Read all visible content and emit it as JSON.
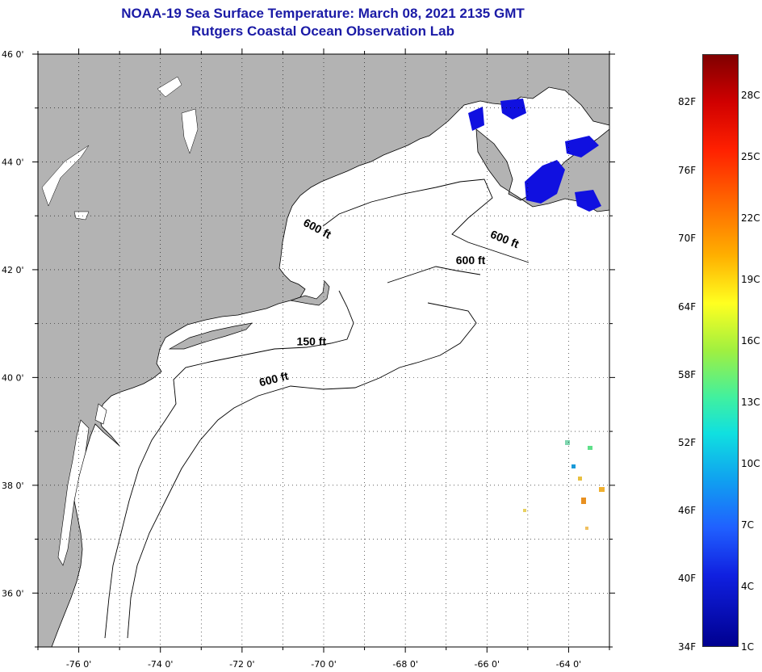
{
  "title": {
    "line1": "NOAA-19 Sea Surface Temperature:  March 08, 2021 2135 GMT",
    "line2": "Rutgers Coastal Ocean Observation Lab"
  },
  "map": {
    "lon_range": [
      -77,
      -63
    ],
    "lat_range": [
      35,
      46
    ],
    "lon_ticks": [
      {
        "value": -76,
        "label": "-76 0'"
      },
      {
        "value": -74,
        "label": "-74 0'"
      },
      {
        "value": -72,
        "label": "-72 0'"
      },
      {
        "value": -70,
        "label": "-70 0'"
      },
      {
        "value": -68,
        "label": "-68 0'"
      },
      {
        "value": -66,
        "label": "-66 0'"
      },
      {
        "value": -64,
        "label": "-64 0'"
      }
    ],
    "lat_ticks": [
      {
        "value": 46,
        "label": "46 0'"
      },
      {
        "value": 44,
        "label": "44 0'"
      },
      {
        "value": 42,
        "label": "42 0'"
      },
      {
        "value": 40,
        "label": "40 0'"
      },
      {
        "value": 38,
        "label": "38 0'"
      },
      {
        "value": 36,
        "label": "36 0'"
      }
    ],
    "contour_labels": [
      {
        "text": "600 ft",
        "lon": -70.2,
        "lat": 42.7,
        "rotate": 28
      },
      {
        "text": "600 ft",
        "lon": -65.6,
        "lat": 42.5,
        "rotate": 22
      },
      {
        "text": "600 ft",
        "lon": -66.4,
        "lat": 42.1,
        "rotate": 0
      },
      {
        "text": "150 ft",
        "lon": -70.3,
        "lat": 40.6,
        "rotate": 0
      },
      {
        "text": "600 ft",
        "lon": -71.2,
        "lat": 39.9,
        "rotate": -14
      }
    ],
    "colors": {
      "land": "#b3b3b3",
      "water": "#ffffff",
      "coast": "#000000",
      "cold_sst": "#1010e0"
    }
  },
  "colorbar": {
    "fahrenheit_labels": [
      "82F",
      "76F",
      "70F",
      "64F",
      "58F",
      "52F",
      "46F",
      "40F",
      "34F"
    ],
    "celsius_labels": [
      "28C",
      "25C",
      "22C",
      "19C",
      "16C",
      "13C",
      "10C",
      "7C",
      "4C",
      "1C"
    ]
  }
}
